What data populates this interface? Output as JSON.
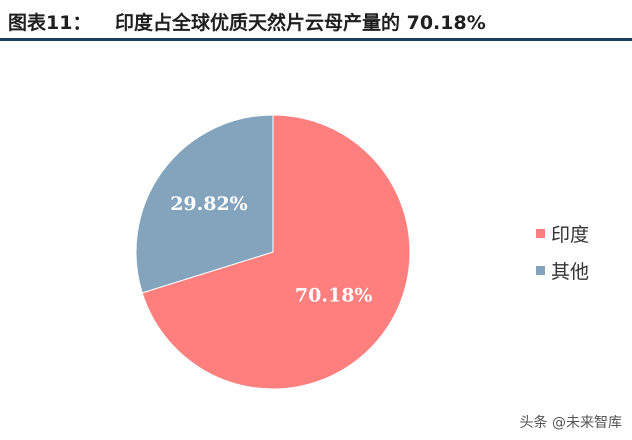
{
  "header": {
    "label": "图表11：",
    "title": "印度占全球优质天然片云母产量的 70.18%",
    "rule_color": "#1c3d5e"
  },
  "chart_data": {
    "type": "pie",
    "title": "",
    "series": [
      {
        "name": "印度",
        "value": 70.18,
        "label": "70.18%",
        "color": "#ff7f7f"
      },
      {
        "name": "其他",
        "value": 29.82,
        "label": "29.82%",
        "color": "#84a4be"
      }
    ],
    "start_angle_deg": 0,
    "direction": "clockwise",
    "legend_position": "right"
  },
  "watermark": "头条 @未来智库"
}
